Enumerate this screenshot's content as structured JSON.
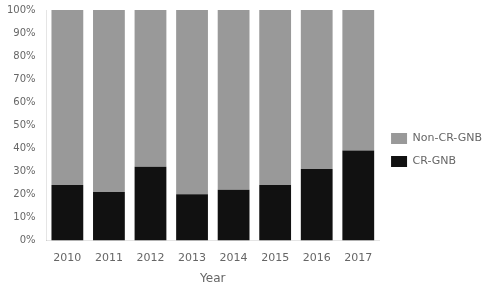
{
  "chart_data": {
    "type": "bar",
    "stacked": true,
    "x_label": "Year",
    "categories": [
      "2010",
      "2011",
      "2012",
      "2013",
      "2014",
      "2015",
      "2016",
      "2017"
    ],
    "series": [
      {
        "name": "CR-GNB",
        "color": "#111111",
        "values": [
          24,
          21,
          32,
          20,
          22,
          24,
          31,
          39
        ]
      },
      {
        "name": "Non-CR-GNB",
        "color": "#999999",
        "values": [
          76,
          79,
          68,
          80,
          78,
          76,
          69,
          61
        ]
      }
    ],
    "ylim": [
      0,
      100
    ],
    "yticks": [
      {
        "value": 0,
        "label": "0%"
      },
      {
        "value": 10,
        "label": "10%"
      },
      {
        "value": 20,
        "label": "20%"
      },
      {
        "value": 30,
        "label": "30%"
      },
      {
        "value": 40,
        "label": "40%"
      },
      {
        "value": 50,
        "label": "50%"
      },
      {
        "value": 60,
        "label": "60%"
      },
      {
        "value": 70,
        "label": "70%"
      },
      {
        "value": 80,
        "label": "80%"
      },
      {
        "value": 90,
        "label": "90%"
      },
      {
        "value": 100,
        "label": "100%"
      }
    ],
    "grid": false,
    "legend": "right"
  }
}
